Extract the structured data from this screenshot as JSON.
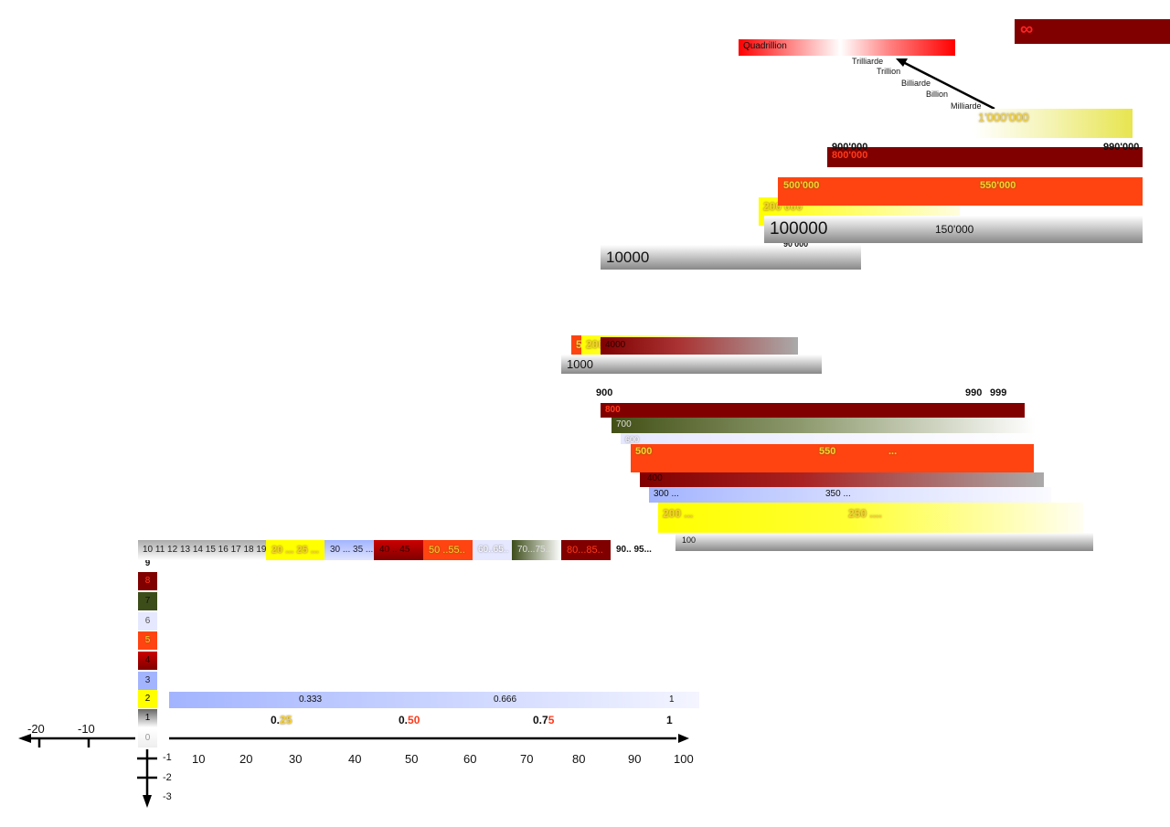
{
  "colors": {
    "grey": "#808080",
    "yellow": "#ffff00",
    "blue": "#a3b4ff",
    "darkred": "#800000",
    "red": "#cc0000",
    "orange": "#ff4411",
    "lavender": "#e6e8ff",
    "olive": "#3d4d1a",
    "dark_olive": "#425016"
  },
  "axis": {
    "x_positive": [
      "10",
      "20",
      "30",
      "40",
      "50",
      "60",
      "70",
      "80",
      "90",
      "100"
    ],
    "x_negative": [
      "-20",
      "-10"
    ],
    "y_negative": [
      "-1",
      "-2",
      "-3"
    ],
    "zero": "0"
  },
  "digits": [
    "1",
    "2",
    "3",
    "4",
    "5",
    "6",
    "7",
    "8",
    "9"
  ],
  "fractions": {
    "thirds": [
      "0.333",
      "0.666",
      "1"
    ],
    "quarters": [
      {
        "lead": "0.",
        "tail": "25"
      },
      {
        "lead": "0.",
        "tail": "50"
      },
      {
        "lead": "0.7",
        "tail": "5"
      },
      {
        "lead": "1",
        "tail": ""
      }
    ]
  },
  "tens_row": {
    "teens": "10 11 12 13 14 15 16 17 18 19",
    "twenties": "20 ... 25 ...",
    "thirties": "30 ... 35 ...",
    "forties": "40 .. 45",
    "fifties": "50 ..55..",
    "sixties": "60..65..",
    "seventies": "70...75...",
    "eighties": "80...85..",
    "nineties": "90.. 95..."
  },
  "hundreds": {
    "h100": "100",
    "h200": "200 ...",
    "h250": "250 ....",
    "h300": "300  ...",
    "h350": "350  ...",
    "h400": "400",
    "h500": "500",
    "h550": "550",
    "h500_more": "...",
    "h600": "600",
    "h700": "700",
    "h800": "800",
    "h900": "900",
    "h990": "990",
    "h999": "999"
  },
  "thousands": {
    "t1000": "1000",
    "t2000": "2000",
    "t4000": "4000",
    "t5000": "5",
    "t10000": "10000"
  },
  "large": {
    "l100000": "100000",
    "l150000": "150'000",
    "l90000": "90'000",
    "l200000": "200'000",
    "l500000": "500'000",
    "l550000": "550'000",
    "l800000": "800'000",
    "l900000": "900'000",
    "l990000": "990'000",
    "l1000000": "1'000'000"
  },
  "names": [
    "Milliarde",
    "Billion",
    "Billiarde",
    "Trillion",
    "Trilliarde"
  ],
  "quadrillion": "Quadrillion",
  "infinity": "∞"
}
